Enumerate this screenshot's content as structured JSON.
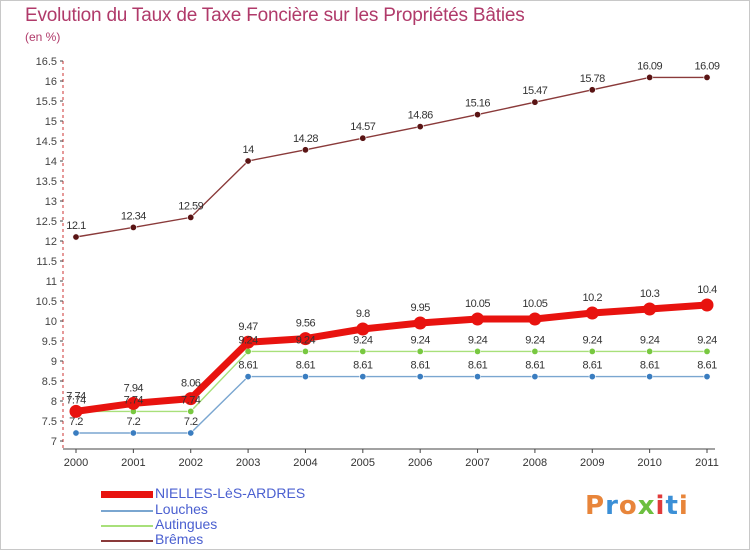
{
  "title": "Evolution du Taux de Taxe Foncière sur les Propriétés Bâties",
  "subtitle": "(en %)",
  "logo": {
    "text": "Proxiti",
    "colors": [
      "#e8853a",
      "#3b8fd6",
      "#e8853a",
      "#6cbf3f",
      "#e03a3a",
      "#3b8fd6",
      "#e8853a"
    ]
  },
  "chart_data": {
    "type": "line",
    "title": "Evolution du Taux de Taxe Foncière sur les Propriétés Bâties",
    "ylabel": "(en %)",
    "xlabel": "",
    "categories": [
      "2000",
      "2001",
      "2002",
      "2003",
      "2004",
      "2005",
      "2006",
      "2007",
      "2008",
      "2009",
      "2010",
      "2011"
    ],
    "ylim": [
      7,
      16.5
    ],
    "yticks": [
      "7",
      "7.5",
      "8",
      "8.5",
      "9",
      "9.5",
      "10",
      "10.5",
      "11",
      "11.5",
      "12",
      "12.5",
      "13",
      "13.5",
      "14",
      "14.5",
      "15",
      "15.5",
      "16",
      "16.5"
    ],
    "series": [
      {
        "name": "NIELLES-LèS-ARDRES",
        "color": "#e8130f",
        "emphasis": true,
        "values": [
          7.74,
          7.94,
          8.06,
          9.47,
          9.56,
          9.8,
          9.95,
          10.05,
          10.05,
          10.2,
          10.3,
          10.4
        ],
        "labels": [
          "7.74",
          "7.94",
          "8.06",
          "9.47",
          "9.56",
          "9.8",
          "9.95",
          "10.05",
          "10.05",
          "10.2",
          "10.3",
          "10.4"
        ]
      },
      {
        "name": "Louches",
        "color": "#7aa6d0",
        "marker": "#3a7dc0",
        "values": [
          7.2,
          7.2,
          7.2,
          8.61,
          8.61,
          8.61,
          8.61,
          8.61,
          8.61,
          8.61,
          8.61,
          8.61
        ],
        "labels": [
          "7.2",
          "7.2",
          "7.2",
          "8.61",
          "8.61",
          "8.61",
          "8.61",
          "8.61",
          "8.61",
          "8.61",
          "8.61",
          "8.61"
        ]
      },
      {
        "name": "Autingues",
        "color": "#a8e07a",
        "marker": "#78c840",
        "values": [
          7.74,
          7.74,
          7.74,
          9.24,
          9.24,
          9.24,
          9.24,
          9.24,
          9.24,
          9.24,
          9.24,
          9.24
        ],
        "labels": [
          "7.74",
          "7.74",
          "7.74",
          "9.24",
          "9.24",
          "9.24",
          "9.24",
          "9.24",
          "9.24",
          "9.24",
          "9.24",
          "9.24"
        ]
      },
      {
        "name": "Brêmes",
        "color": "#8a3a3a",
        "marker": "#5a1414",
        "values": [
          12.1,
          12.34,
          12.59,
          14,
          14.28,
          14.57,
          14.86,
          15.16,
          15.47,
          15.78,
          16.09,
          16.09
        ],
        "labels": [
          "12.1",
          "12.34",
          "12.59",
          "14",
          "14.28",
          "14.57",
          "14.86",
          "15.16",
          "15.47",
          "15.78",
          "16.09",
          "16.09"
        ]
      }
    ],
    "grid": false,
    "legend_position": "bottom-left"
  }
}
